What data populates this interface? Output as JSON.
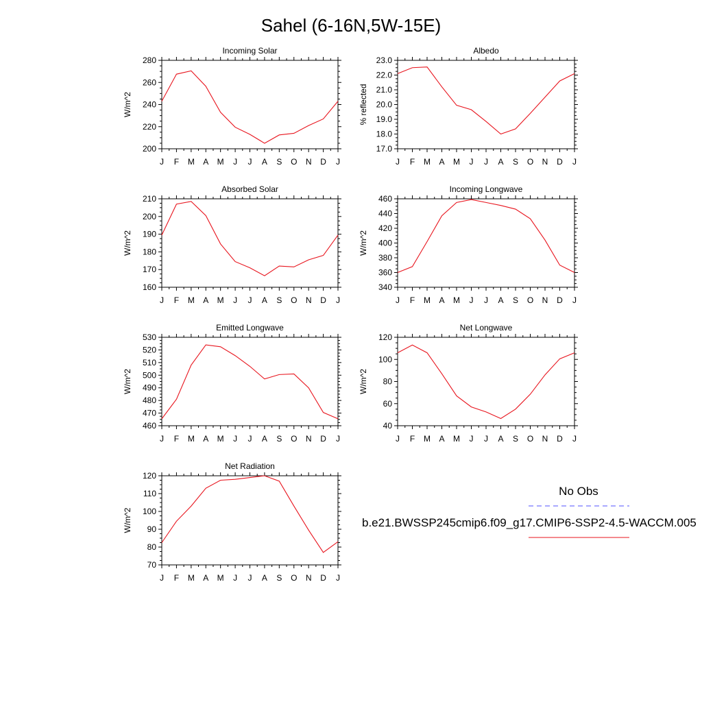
{
  "page": {
    "title": "Sahel (6-16N,5W-15E)"
  },
  "legend": {
    "items": [
      {
        "label": "No Obs",
        "color": "#5050ff",
        "dash": true
      },
      {
        "label": "b.e21.BWSSP245cmip6.f09_g17.CMIP6-SSP2-4.5-WACCM.005",
        "color": "#e8141d",
        "dash": false
      }
    ]
  },
  "chart_data": [
    {
      "type": "line",
      "title": "Incoming Solar",
      "ylabel": "W/m^2",
      "categories": [
        "J",
        "F",
        "M",
        "A",
        "M",
        "J",
        "J",
        "A",
        "S",
        "O",
        "N",
        "D",
        "J"
      ],
      "ylim": [
        200,
        280
      ],
      "yticks": [
        200,
        220,
        240,
        260,
        280
      ],
      "ytick_labels": [
        "200",
        "220",
        "240",
        "260",
        "280"
      ],
      "series": [
        {
          "values": [
            243,
            267.5,
            270.5,
            256.5,
            233,
            219.5,
            213,
            205,
            212.5,
            214,
            221,
            227,
            243
          ]
        }
      ]
    },
    {
      "type": "line",
      "title": "Albedo",
      "ylabel": "% reflected",
      "categories": [
        "J",
        "F",
        "M",
        "A",
        "M",
        "J",
        "J",
        "A",
        "S",
        "O",
        "N",
        "D",
        "J"
      ],
      "ylim": [
        17,
        23
      ],
      "yticks": [
        17,
        18,
        19,
        20,
        21,
        22,
        23
      ],
      "ytick_labels": [
        "17.0",
        "18.0",
        "19.0",
        "20.0",
        "21.0",
        "22.0",
        "23.0"
      ],
      "series": [
        {
          "values": [
            22.1,
            22.5,
            22.55,
            21.2,
            19.95,
            19.65,
            18.85,
            18.0,
            18.35,
            19.4,
            20.5,
            21.6,
            22.1
          ]
        }
      ]
    },
    {
      "type": "line",
      "title": "Absorbed Solar",
      "ylabel": "W/m^2",
      "categories": [
        "J",
        "F",
        "M",
        "A",
        "M",
        "J",
        "J",
        "A",
        "S",
        "O",
        "N",
        "D",
        "J"
      ],
      "ylim": [
        160,
        210
      ],
      "yticks": [
        160,
        170,
        180,
        190,
        200,
        210
      ],
      "ytick_labels": [
        "160",
        "170",
        "180",
        "190",
        "200",
        "210"
      ],
      "series": [
        {
          "values": [
            189.5,
            207,
            208.5,
            200.5,
            184.5,
            174.5,
            171,
            166.5,
            172,
            171.5,
            175.5,
            178,
            189.5
          ]
        }
      ]
    },
    {
      "type": "line",
      "title": "Incoming Longwave",
      "ylabel": "W/m^2",
      "categories": [
        "J",
        "F",
        "M",
        "A",
        "M",
        "J",
        "J",
        "A",
        "S",
        "O",
        "N",
        "D",
        "J"
      ],
      "ylim": [
        340,
        460
      ],
      "yticks": [
        340,
        360,
        380,
        400,
        420,
        440,
        460
      ],
      "ytick_labels": [
        "340",
        "360",
        "380",
        "400",
        "420",
        "440",
        "460"
      ],
      "series": [
        {
          "values": [
            360,
            368,
            402,
            437,
            455,
            459,
            455,
            451,
            446,
            433,
            404,
            370,
            360
          ]
        }
      ]
    },
    {
      "type": "line",
      "title": "Emitted Longwave",
      "ylabel": "W/m^2",
      "categories": [
        "J",
        "F",
        "M",
        "A",
        "M",
        "J",
        "J",
        "A",
        "S",
        "O",
        "N",
        "D",
        "J"
      ],
      "ylim": [
        460,
        530
      ],
      "yticks": [
        460,
        470,
        480,
        490,
        500,
        510,
        520,
        530
      ],
      "ytick_labels": [
        "460",
        "470",
        "480",
        "490",
        "500",
        "510",
        "520",
        "530"
      ],
      "series": [
        {
          "values": [
            465.5,
            481,
            508,
            524,
            522.5,
            515.5,
            507,
            497,
            500.5,
            501,
            490,
            470.5,
            465.5
          ]
        }
      ]
    },
    {
      "type": "line",
      "title": "Net Longwave",
      "ylabel": "W/m^2",
      "categories": [
        "J",
        "F",
        "M",
        "A",
        "M",
        "J",
        "J",
        "A",
        "S",
        "O",
        "N",
        "D",
        "J"
      ],
      "ylim": [
        40,
        120
      ],
      "yticks": [
        40,
        60,
        80,
        100,
        120
      ],
      "ytick_labels": [
        "40",
        "60",
        "80",
        "100",
        "120"
      ],
      "series": [
        {
          "values": [
            106,
            113,
            106,
            87,
            67,
            57,
            52.5,
            46.5,
            55,
            68.5,
            86,
            100.5,
            106
          ]
        }
      ]
    },
    {
      "type": "line",
      "title": "Net Radiation",
      "ylabel": "W/m^2",
      "categories": [
        "J",
        "F",
        "M",
        "A",
        "M",
        "J",
        "J",
        "A",
        "S",
        "O",
        "N",
        "D",
        "J"
      ],
      "ylim": [
        70,
        120
      ],
      "yticks": [
        70,
        80,
        90,
        100,
        110,
        120
      ],
      "ytick_labels": [
        "70",
        "80",
        "90",
        "100",
        "110",
        "120"
      ],
      "series": [
        {
          "values": [
            82.5,
            94.5,
            103,
            113,
            117.5,
            118,
            119,
            120,
            117,
            103,
            89.5,
            77,
            83
          ]
        }
      ]
    }
  ]
}
